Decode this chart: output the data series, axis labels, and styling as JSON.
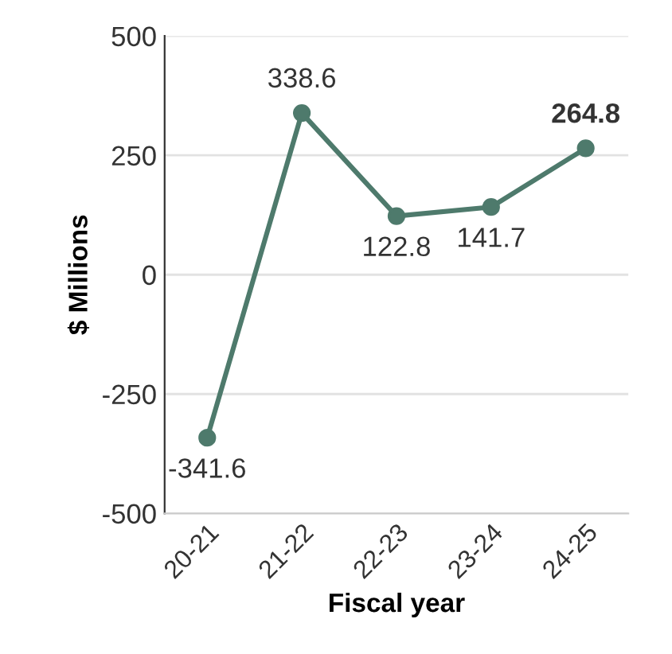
{
  "chart_data": {
    "type": "line",
    "xlabel": "Fiscal year",
    "ylabel": "$ Millions",
    "categories": [
      "20-21",
      "21-22",
      "22-23",
      "23-24",
      "24-25"
    ],
    "series": [
      {
        "color": "#4e7a6c",
        "values": [
          -341.6,
          338.6,
          122.8,
          141.7,
          264.8
        ]
      }
    ],
    "ylim": [
      -500,
      500
    ],
    "yticks": [
      -500,
      -250,
      0,
      250,
      500
    ],
    "grid": "y",
    "marker": "circle",
    "line_style": "solid",
    "data_labels": true
  }
}
